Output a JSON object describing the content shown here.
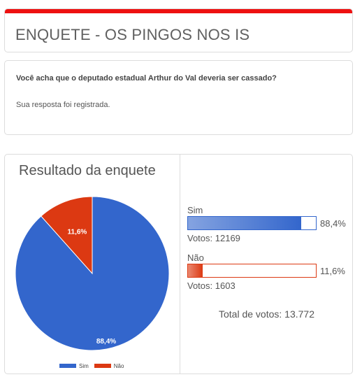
{
  "header": {
    "title": "ENQUETE - OS PINGOS NOS IS"
  },
  "poll": {
    "question": "Você acha que o deputado estadual Arthur do Val deveria ser cassado?",
    "response_message": "Sua resposta foi registrada."
  },
  "results": {
    "title": "Resultado da enquete",
    "options": [
      {
        "label": "Sim",
        "percent_text": "88,4%",
        "percent": 88.4,
        "votes_text": "Votos: 12169",
        "color": "#3366cc"
      },
      {
        "label": "Não",
        "percent_text": "11,6%",
        "percent": 11.6,
        "votes_text": "Votos: 1603",
        "color": "#dc3912"
      }
    ],
    "total_text": "Total de votos: 13.772"
  },
  "chart_data": {
    "type": "pie",
    "title": "Resultado da enquete",
    "categories": [
      "Sim",
      "Não"
    ],
    "values": [
      88.4,
      11.6
    ],
    "labels": [
      "88,4%",
      "11,6%"
    ],
    "colors": [
      "#3366cc",
      "#dc3912"
    ],
    "legend": "bottom"
  }
}
